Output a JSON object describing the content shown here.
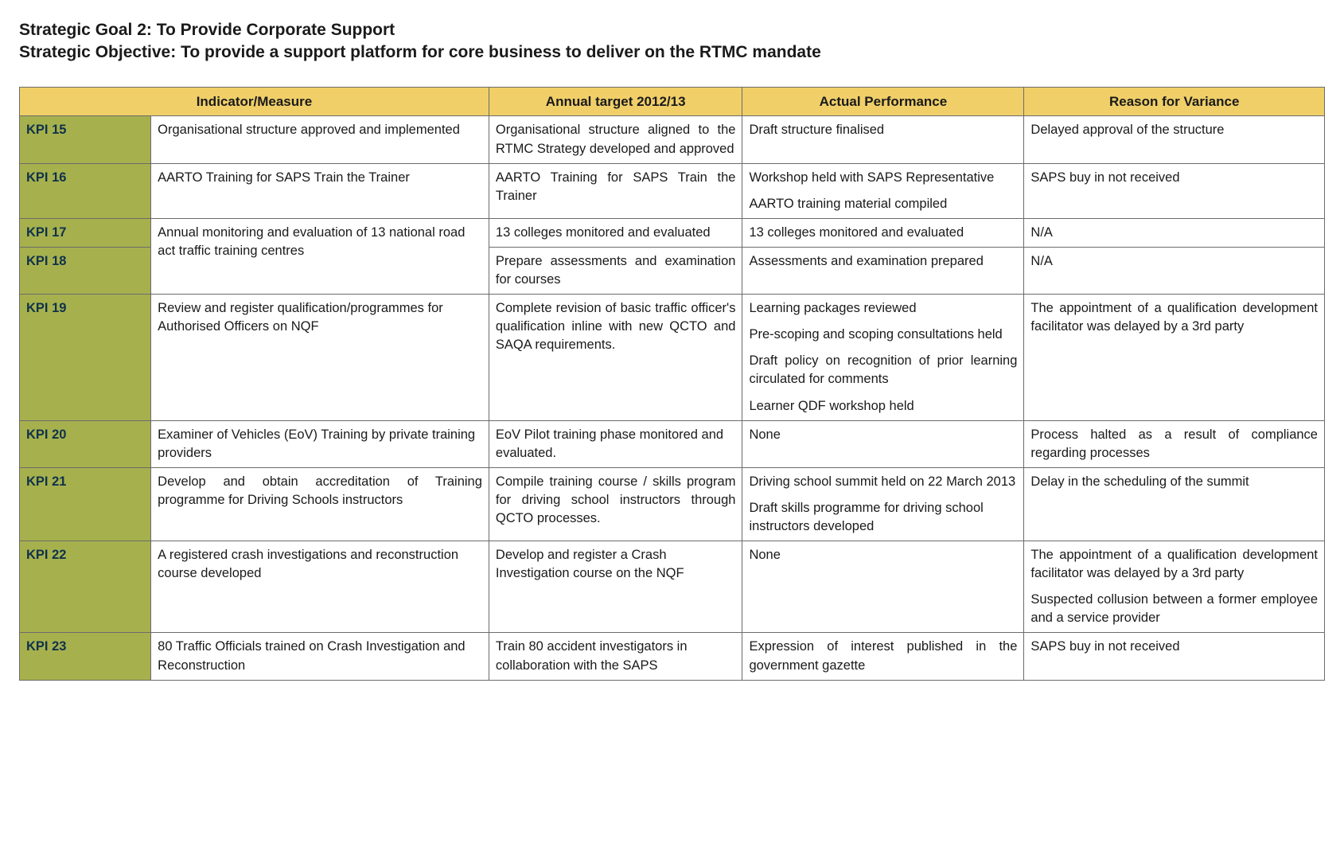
{
  "heading": {
    "goal": "Strategic Goal 2: To Provide Corporate Support",
    "objective": "Strategic Objective: To provide a support platform for core business to deliver on the RTMC mandate"
  },
  "colors": {
    "header_bg": "#f0cf69",
    "kpi_bg": "#a6b14e",
    "border": "#6b6b6b",
    "text": "#1a1a1a"
  },
  "columns": {
    "indicator": "Indicator/Measure",
    "target": "Annual target 2012/13",
    "actual": "Actual Performance",
    "variance": "Reason for Variance"
  },
  "rows": [
    {
      "kpi": "KPI 15",
      "indicator": "Organisational structure approved and implemented",
      "target": "Organisational structure aligned to the RTMC Strategy developed and approved",
      "actual": [
        "Draft structure finalised"
      ],
      "variance": [
        "Delayed approval of the structure"
      ],
      "justify": {
        "target": true
      }
    },
    {
      "kpi": "KPI 16",
      "indicator": "AARTO Training for SAPS Train the Trainer",
      "target": "AARTO Training for SAPS Train the Trainer",
      "actual": [
        "Workshop held with SAPS Representative",
        "AARTO training material compiled"
      ],
      "variance": [
        "SAPS buy in not received"
      ],
      "justify": {
        "target": true
      }
    },
    {
      "kpi": "KPI 17",
      "indicator": "Annual monitoring and evaluation of 13 national road act traffic training centres",
      "target": "13 colleges monitored and evaluated",
      "actual": [
        "13 colleges monitored and evaluated"
      ],
      "variance": [
        "N/A"
      ],
      "justify": {},
      "row_span_indicator": 2
    },
    {
      "kpi": "KPI 18",
      "indicator": null,
      "target": "Prepare assessments and examination for courses",
      "actual": [
        "Assessments and examination prepared"
      ],
      "variance": [
        "N/A"
      ],
      "justify": {
        "target": true
      }
    },
    {
      "kpi": "KPI 19",
      "indicator": "Review and register qualification/programmes for Authorised Officers on NQF",
      "target": "Complete revision of basic traffic officer's qualification inline with new QCTO and SAQA requirements.",
      "actual": [
        "Learning packages reviewed",
        "Pre-scoping and scoping consultations held",
        "Draft policy on recognition of prior learning circulated for comments",
        "Learner QDF workshop held"
      ],
      "variance": [
        "The appointment of a qualification development facilitator was delayed by a 3rd party"
      ],
      "justify": {
        "target": true,
        "actual": true,
        "variance": true
      }
    },
    {
      "kpi": "KPI 20",
      "indicator": "Examiner of Vehicles (EoV) Training by private training providers",
      "target": "EoV Pilot training phase monitored and evaluated.",
      "actual": [
        "None"
      ],
      "variance": [
        "Process halted as a result of compliance regarding processes"
      ],
      "justify": {
        "variance": true
      }
    },
    {
      "kpi": "KPI 21",
      "indicator": "Develop and obtain accreditation of Training programme for Driving Schools instructors",
      "target": "Compile training course / skills program for driving school instructors through QCTO processes.",
      "actual": [
        "Driving school summit held on 22 March 2013",
        "Draft skills programme for driving school instructors developed"
      ],
      "variance": [
        "Delay in the scheduling of the summit"
      ],
      "justify": {
        "indicator": true,
        "target": true
      }
    },
    {
      "kpi": "KPI 22",
      "indicator": "A registered crash investigations and reconstruction course developed",
      "target": "Develop and register a Crash Investigation course on the NQF",
      "actual": [
        "None"
      ],
      "variance": [
        "The appointment of a qualification development facilitator was delayed by a 3rd party",
        "Suspected collusion between a former employee and a service provider"
      ],
      "justify": {
        "variance": true
      }
    },
    {
      "kpi": "KPI 23",
      "indicator": "80 Traffic Officials trained on Crash Investigation and Reconstruction",
      "target": "Train 80 accident investigators in collaboration with the SAPS",
      "actual": [
        "Expression of interest published in the government gazette"
      ],
      "variance": [
        "SAPS buy in not received"
      ],
      "justify": {
        "actual": true
      }
    }
  ]
}
